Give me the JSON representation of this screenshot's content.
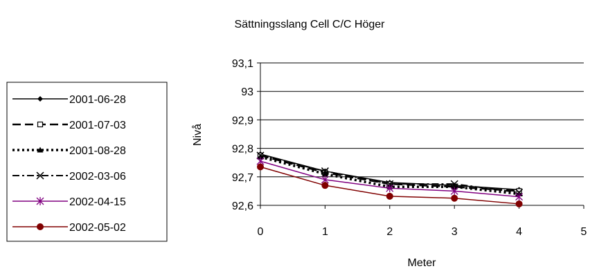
{
  "chart_data": {
    "type": "line",
    "title": "Sättningsslang Cell C/C Höger",
    "xlabel": "Meter",
    "ylabel": "Nivå",
    "xlim": [
      0,
      5
    ],
    "ylim": [
      92.6,
      93.1
    ],
    "xticks": [
      "0",
      "1",
      "2",
      "3",
      "4",
      "5"
    ],
    "yticks": [
      "92,6",
      "92,7",
      "92,8",
      "92,9",
      "93",
      "93,1"
    ],
    "grid": "horizontal",
    "legend_position": "left",
    "x": [
      0,
      1,
      2,
      3,
      4
    ],
    "series": [
      {
        "name": "2001-06-28",
        "values": [
          92.78,
          92.72,
          92.68,
          92.67,
          92.655
        ],
        "color": "#000000",
        "dash": "solid",
        "marker": "diamond"
      },
      {
        "name": "2001-07-03",
        "values": [
          92.775,
          92.715,
          92.675,
          92.665,
          92.65
        ],
        "color": "#000000",
        "dash": "longdash",
        "marker": "square-open"
      },
      {
        "name": "2001-08-28",
        "values": [
          92.77,
          92.71,
          92.665,
          92.665,
          92.64
        ],
        "color": "#000000",
        "dash": "dotted",
        "marker": "triangle"
      },
      {
        "name": "2002-03-06",
        "values": [
          92.775,
          92.72,
          92.675,
          92.675,
          92.645
        ],
        "color": "#000000",
        "dash": "dashdot",
        "marker": "x"
      },
      {
        "name": "2002-04-15",
        "values": [
          92.755,
          92.69,
          92.66,
          92.65,
          92.63
        ],
        "color": "#800080",
        "dash": "solid",
        "marker": "asterisk"
      },
      {
        "name": "2002-05-02",
        "values": [
          92.735,
          92.67,
          92.632,
          92.625,
          92.605
        ],
        "color": "#800000",
        "dash": "solid",
        "marker": "circle"
      }
    ]
  }
}
